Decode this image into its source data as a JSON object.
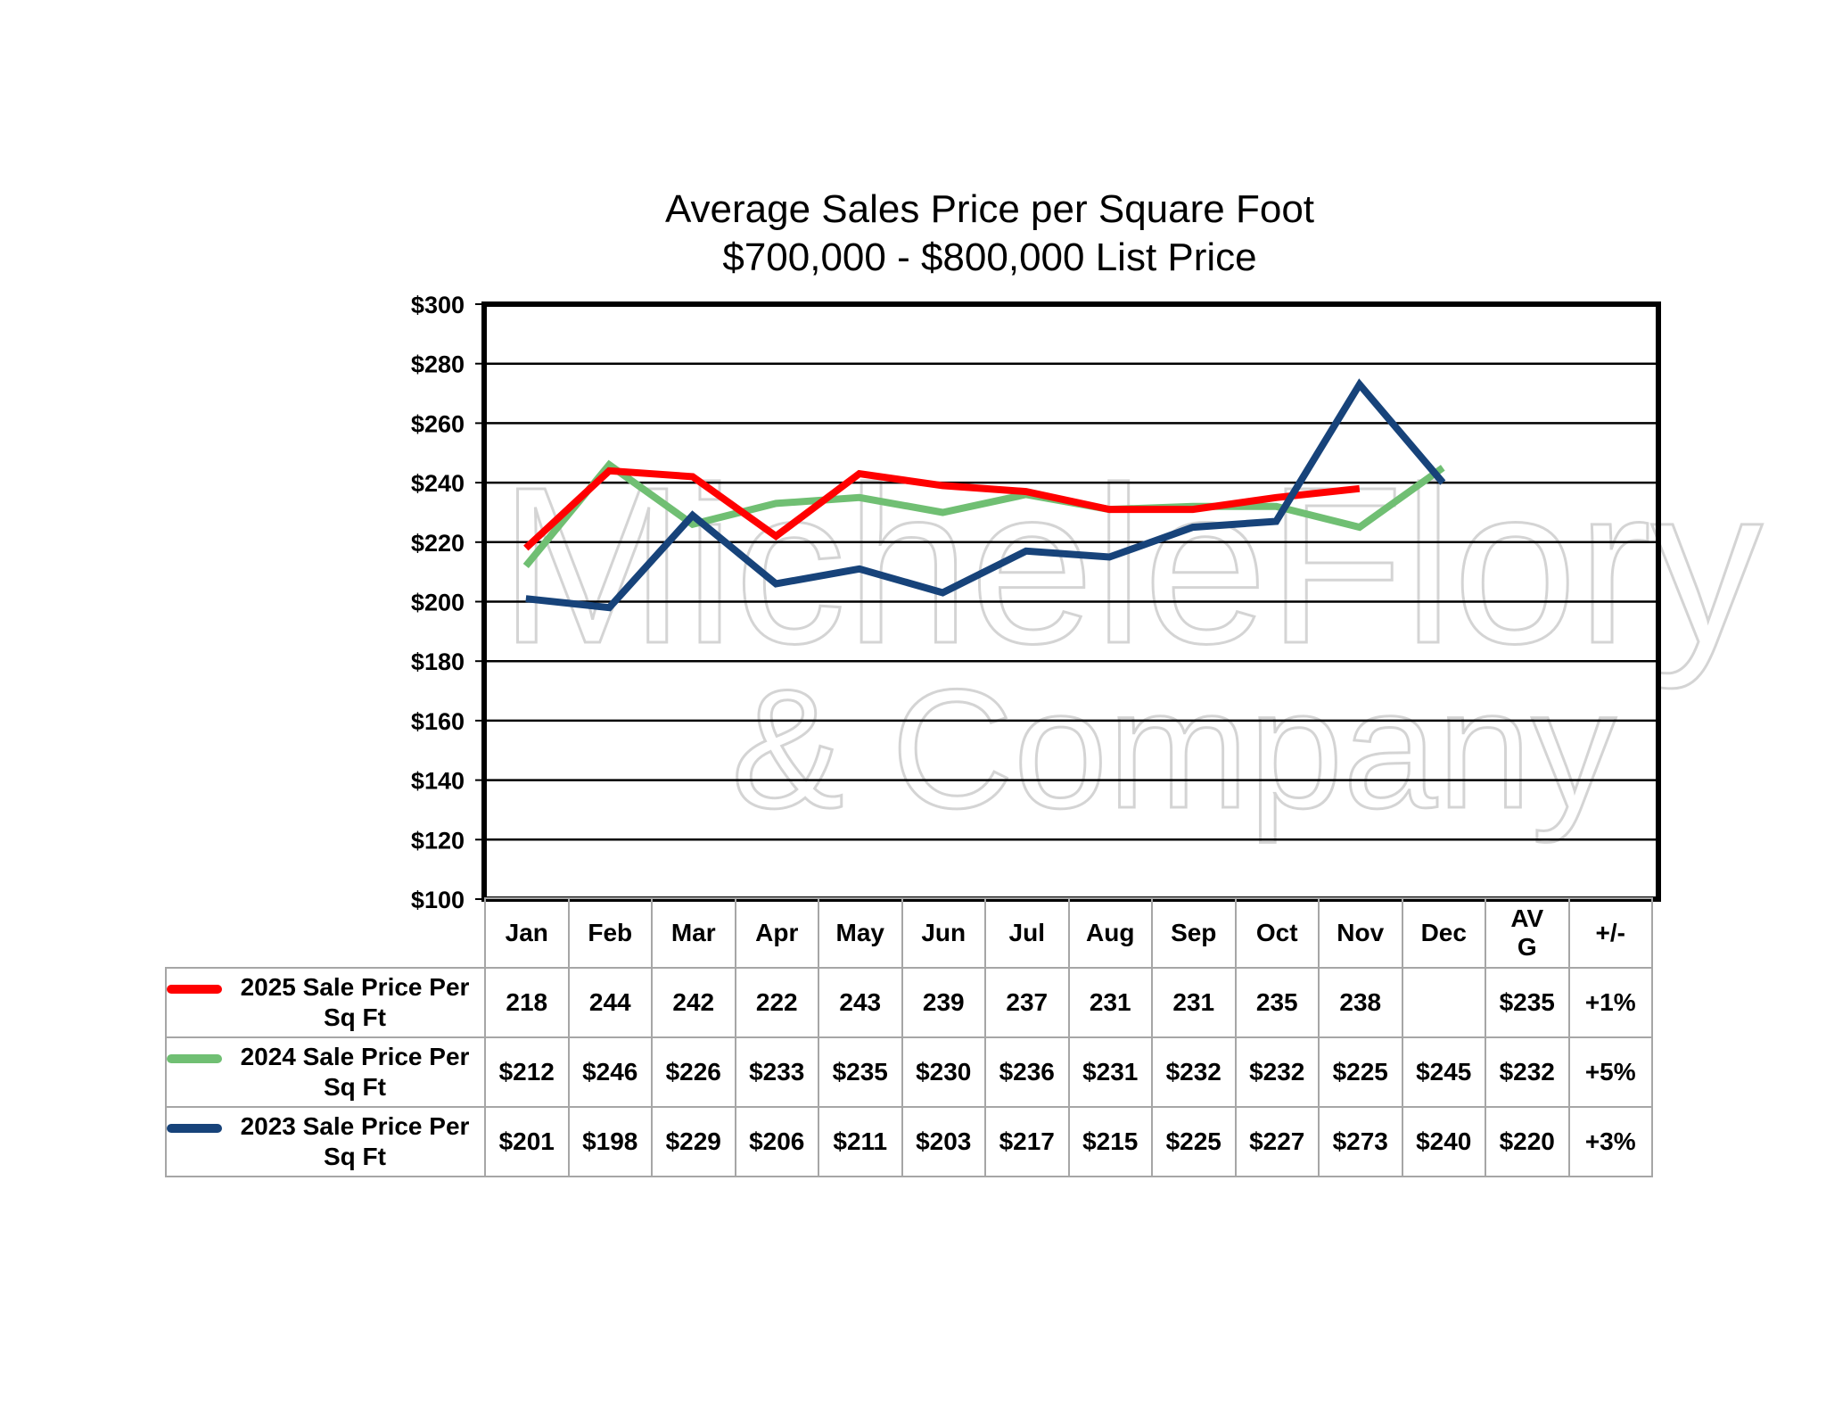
{
  "title": {
    "line1": "Average Sales Price per Square Foot",
    "line2": "$700,000 - $800,000 List Price"
  },
  "watermark": {
    "line1": "MicheleFlory",
    "line2": "& Company"
  },
  "chart_data": {
    "type": "line",
    "categories": [
      "Jan",
      "Feb",
      "Mar",
      "Apr",
      "May",
      "Jun",
      "Jul",
      "Aug",
      "Sep",
      "Oct",
      "Nov",
      "Dec"
    ],
    "ylim": [
      100,
      300
    ],
    "ytick_step": 20,
    "ytick_labels": [
      "$100",
      "$120",
      "$140",
      "$160",
      "$180",
      "$200",
      "$220",
      "$240",
      "$260",
      "$280",
      "$300"
    ],
    "grid": true,
    "legend": "table-left",
    "series": [
      {
        "name": "2025 Sale Price Per Sq Ft",
        "color": "#ff0000",
        "values": [
          218,
          244,
          242,
          222,
          243,
          239,
          237,
          231,
          231,
          235,
          238,
          null
        ]
      },
      {
        "name": "2024 Sale Price Per Sq Ft",
        "color": "#70bf73",
        "values": [
          212,
          246,
          226,
          233,
          235,
          230,
          236,
          231,
          232,
          232,
          225,
          245
        ]
      },
      {
        "name": "2023 Sale Price Per Sq Ft",
        "color": "#17437a",
        "values": [
          201,
          198,
          229,
          206,
          211,
          203,
          217,
          215,
          225,
          227,
          273,
          240
        ]
      }
    ]
  },
  "table": {
    "extra_headers": [
      "AV G",
      "+/-"
    ],
    "rows": [
      {
        "label": "2025 Sale Price Per Sq Ft",
        "color": "#ff0000",
        "cells": [
          "218",
          "244",
          "242",
          "222",
          "243",
          "239",
          "237",
          "231",
          "231",
          "235",
          "238",
          "",
          "$235",
          "+1%"
        ]
      },
      {
        "label": "2024 Sale Price Per Sq Ft",
        "color": "#70bf73",
        "cells": [
          "$212",
          "$246",
          "$226",
          "$233",
          "$235",
          "$230",
          "$236",
          "$231",
          "$232",
          "$232",
          "$225",
          "$245",
          "$232",
          "+5%"
        ]
      },
      {
        "label": "2023 Sale Price Per Sq Ft",
        "color": "#17437a",
        "cells": [
          "$201",
          "$198",
          "$229",
          "$206",
          "$211",
          "$203",
          "$217",
          "$215",
          "$225",
          "$227",
          "$273",
          "$240",
          "$220",
          "+3%"
        ]
      }
    ]
  }
}
